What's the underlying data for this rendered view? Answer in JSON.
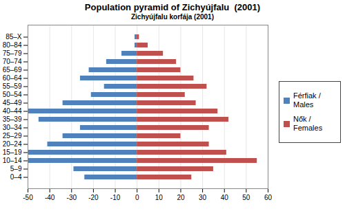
{
  "chart_data": {
    "type": "bar",
    "orientation": "horizontal",
    "title": "Population pyramid of Zichyújfalu  (2001)",
    "subtitle": "Zichyújfalu korfája (2001)",
    "categories": [
      "85–X",
      "80–84",
      "75–79",
      "70–74",
      "65–69",
      "60–64",
      "55–59",
      "50–54",
      "45–49",
      "40–44",
      "35–39",
      "30–34",
      "25–29",
      "20–24",
      "15–19",
      "10–14",
      "5–9",
      "0–4"
    ],
    "series": [
      {
        "name": "Férfiak / Males",
        "color": "#4f81bd",
        "values": [
          -1,
          -1,
          -7,
          -14,
          -22,
          -26,
          -15,
          -21,
          -34,
          -50,
          -45,
          -26,
          -34,
          -41,
          -50,
          -50,
          -29,
          -24
        ]
      },
      {
        "name": "Nők / Females",
        "color": "#c0504d",
        "values": [
          1,
          5,
          12,
          18,
          20,
          26,
          32,
          22,
          27,
          37,
          42,
          33,
          20,
          33,
          41,
          55,
          35,
          25
        ]
      }
    ],
    "xlim": [
      -50,
      60
    ],
    "xticks": [
      -50,
      -40,
      -30,
      -20,
      -10,
      0,
      10,
      20,
      30,
      40,
      50,
      60
    ],
    "grid": true,
    "legend": "right"
  }
}
